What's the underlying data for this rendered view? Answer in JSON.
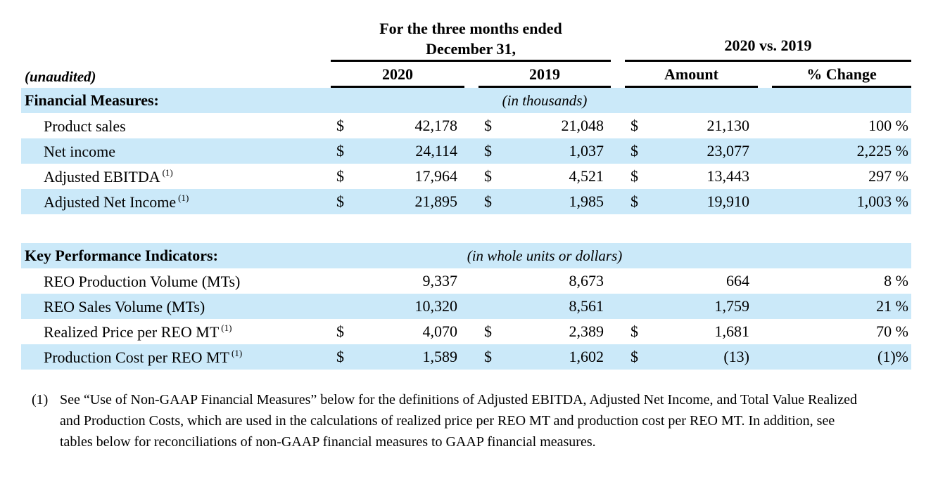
{
  "header": {
    "period_line1": "For the three months ended",
    "period_line2": "December 31,",
    "comparison": "2020 vs. 2019",
    "unaudited": "(unaudited)",
    "col_2020": "2020",
    "col_2019": "2019",
    "col_amount": "Amount",
    "col_pct": "% Change"
  },
  "sections": [
    {
      "title": "Financial Measures:",
      "unit_note": "(in thousands)",
      "rows": [
        {
          "label": "Product sales",
          "sup": "",
          "d2020": "$",
          "v2020": "42,178",
          "d2019": "$",
          "v2019": "21,048",
          "damt": "$",
          "amount": "21,130",
          "pct": "100 %"
        },
        {
          "label": "Net income",
          "sup": "",
          "d2020": "$",
          "v2020": "24,114",
          "d2019": "$",
          "v2019": "1,037",
          "damt": "$",
          "amount": "23,077",
          "pct": "2,225 %"
        },
        {
          "label": "Adjusted EBITDA",
          "sup": "(1)",
          "d2020": "$",
          "v2020": "17,964",
          "d2019": "$",
          "v2019": "4,521",
          "damt": "$",
          "amount": "13,443",
          "pct": "297 %"
        },
        {
          "label": "Adjusted Net Income",
          "sup": "(1)",
          "d2020": "$",
          "v2020": "21,895",
          "d2019": "$",
          "v2019": "1,985",
          "damt": "$",
          "amount": "19,910",
          "pct": "1,003 %"
        }
      ]
    },
    {
      "title": "Key Performance Indicators:",
      "unit_note": "(in whole units or dollars)",
      "rows": [
        {
          "label": "REO Production Volume (MTs)",
          "sup": "",
          "d2020": "",
          "v2020": "9,337",
          "d2019": "",
          "v2019": "8,673",
          "damt": "",
          "amount": "664",
          "pct": "8 %"
        },
        {
          "label": "REO Sales Volume (MTs)",
          "sup": "",
          "d2020": "",
          "v2020": "10,320",
          "d2019": "",
          "v2019": "8,561",
          "damt": "",
          "amount": "1,759",
          "pct": "21 %"
        },
        {
          "label": "Realized Price per REO MT",
          "sup": "(1)",
          "d2020": "$",
          "v2020": "4,070",
          "d2019": "$",
          "v2019": "2,389",
          "damt": "$",
          "amount": "1,681",
          "pct": "70 %"
        },
        {
          "label": "Production Cost per REO MT",
          "sup": "(1)",
          "d2020": "$",
          "v2020": "1,589",
          "d2019": "$",
          "v2019": "1,602",
          "damt": "$",
          "amount": "(13)",
          "pct": "(1)%"
        }
      ]
    }
  ],
  "footnote": {
    "marker": "(1)",
    "line1": "See “Use of Non-GAAP Financial Measures” below for the definitions of Adjusted EBITDA, Adjusted Net Income, and Total Value Realized",
    "line2": "and Production Costs, which are used in the calculations of realized price per REO MT and production cost per REO MT. In addition, see",
    "line3": "tables below for reconciliations of non-GAAP financial measures to GAAP financial measures."
  },
  "colors": {
    "row_highlight": "#cbe9f9"
  }
}
